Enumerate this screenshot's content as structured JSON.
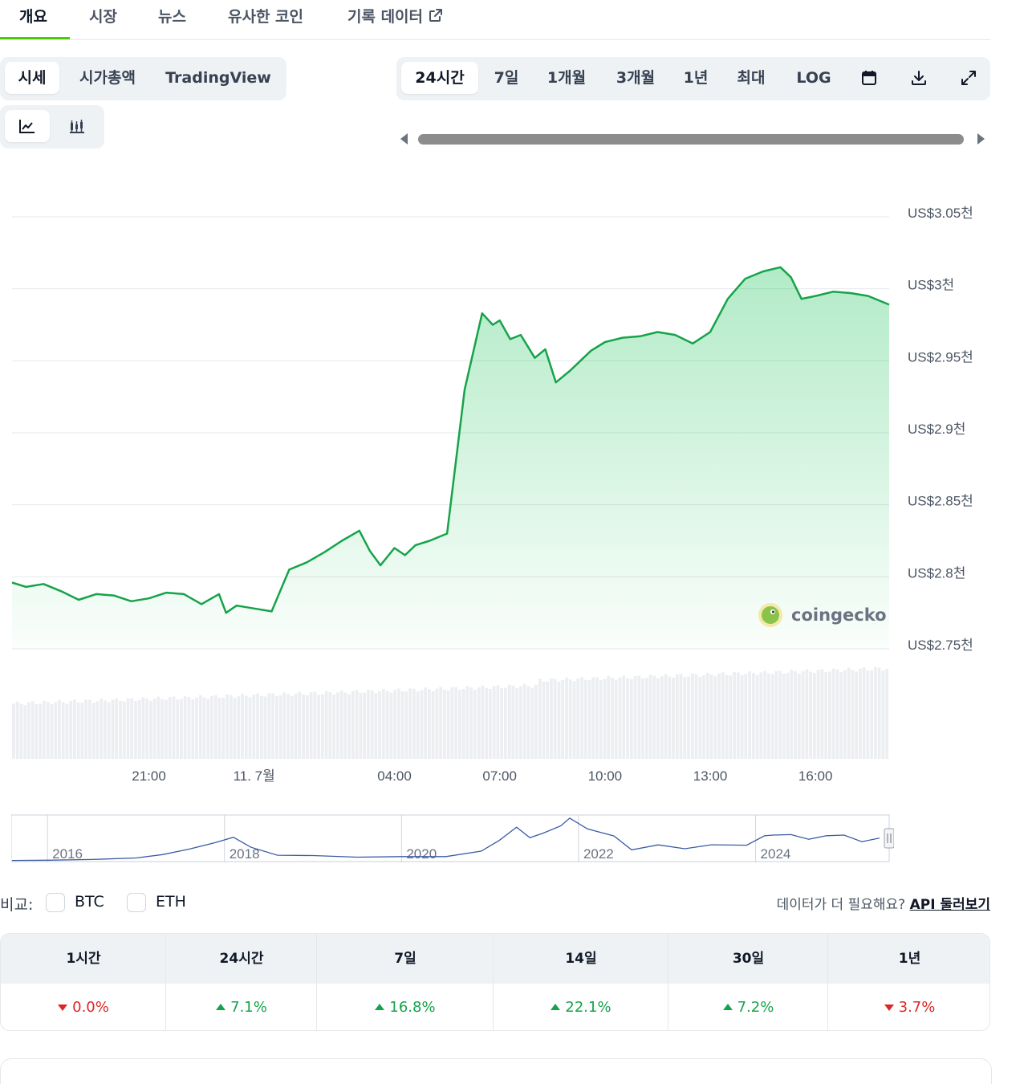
{
  "top_tabs": [
    {
      "label": "개요",
      "active": true
    },
    {
      "label": "시장"
    },
    {
      "label": "뉴스"
    },
    {
      "label": "유사한 코인"
    },
    {
      "label": "기록 데이터"
    }
  ],
  "chart_type_tabs": [
    {
      "label": "시세",
      "active": true
    },
    {
      "label": "시가총액"
    },
    {
      "label": "TradingView"
    }
  ],
  "range_tabs": [
    {
      "label": "24시간",
      "active": true
    },
    {
      "label": "7일"
    },
    {
      "label": "1개월"
    },
    {
      "label": "3개월"
    },
    {
      "label": "1년"
    },
    {
      "label": "최대"
    },
    {
      "label": "LOG"
    }
  ],
  "toolbar_icons": [
    "calendar-icon",
    "download-icon",
    "expand-icon"
  ],
  "view_icons": [
    "line-chart-icon",
    "candlestick-icon"
  ],
  "watermark": "coingecko",
  "colors": {
    "line": "#16a34a",
    "accent": "#4bcc00",
    "up": "#16a34a",
    "down": "#dc2626",
    "navigator": "#3b5ba5"
  },
  "chart_data": {
    "type": "area",
    "y_ticks": [
      "US$3.05천",
      "US$3천",
      "US$2.95천",
      "US$2.9천",
      "US$2.85천",
      "US$2.8천",
      "US$2.75천"
    ],
    "y_tick_values": [
      3050,
      3000,
      2950,
      2900,
      2850,
      2800,
      2750
    ],
    "ylim": [
      2750,
      3050
    ],
    "x_ticks": [
      "21:00",
      "11. 7월",
      "04:00",
      "07:00",
      "10:00",
      "13:00",
      "16:00"
    ],
    "x_tick_positions": [
      3,
      6,
      10,
      13,
      16,
      19,
      22
    ],
    "xlim": [
      -0.9,
      24.1
    ],
    "grid": true,
    "series": [
      {
        "x": [
          -0.9,
          -0.5,
          0,
          0.5,
          1,
          1.5,
          2,
          2.5,
          3,
          3.5,
          4,
          4.5,
          5,
          5.2,
          5.5,
          6,
          6.5,
          7,
          7.5,
          8,
          8.5,
          9,
          9.3,
          9.6,
          10,
          10.3,
          10.6,
          11,
          11.5,
          12,
          12.5,
          12.8,
          13,
          13.3,
          13.6,
          14,
          14.3,
          14.6,
          15,
          15.3,
          15.6,
          16,
          16.5,
          17,
          17.5,
          18,
          18.5,
          19,
          19.5,
          20,
          20.5,
          21,
          21.3,
          21.6,
          22,
          22.5,
          23,
          23.5,
          24.1
        ],
        "values": [
          2796,
          2793,
          2795,
          2790,
          2784,
          2788,
          2787,
          2783,
          2785,
          2789,
          2788,
          2781,
          2788,
          2775,
          2780,
          2778,
          2776,
          2805,
          2810,
          2817,
          2825,
          2832,
          2818,
          2808,
          2820,
          2815,
          2822,
          2825,
          2830,
          2930,
          2983,
          2975,
          2978,
          2965,
          2968,
          2952,
          2958,
          2935,
          2943,
          2950,
          2957,
          2963,
          2966,
          2967,
          2970,
          2968,
          2962,
          2970,
          2993,
          3007,
          3012,
          3015,
          3008,
          2993,
          2995,
          2998,
          2997,
          2995,
          2989
        ]
      }
    ],
    "volume": {
      "min_ratio": 0.55,
      "max_ratio": 0.85
    },
    "navigator": {
      "x_labels": [
        "2016",
        "2018",
        "2020",
        "2022",
        "2024"
      ],
      "x_label_values": [
        2016,
        2018,
        2020,
        2022,
        2024
      ],
      "xlim": [
        2015.6,
        2025.5
      ],
      "x": [
        2015.6,
        2016,
        2016.5,
        2017,
        2017.3,
        2017.6,
        2017.9,
        2018.1,
        2018.3,
        2018.6,
        2019,
        2019.5,
        2020,
        2020.5,
        2020.9,
        2021.1,
        2021.3,
        2021.45,
        2021.6,
        2021.8,
        2021.9,
        2022.1,
        2022.4,
        2022.6,
        2022.9,
        2023.2,
        2023.5,
        2023.9,
        2024.1,
        2024.2,
        2024.4,
        2024.6,
        2024.8,
        2025,
        2025.2,
        2025.4
      ],
      "values": [
        0.5,
        1,
        2,
        5,
        10,
        20,
        30,
        40,
        22,
        10,
        8,
        7,
        6,
        8,
        15,
        35,
        55,
        40,
        45,
        60,
        70,
        55,
        40,
        20,
        25,
        22,
        25,
        28,
        40,
        45,
        42,
        38,
        40,
        45,
        30,
        38
      ]
    }
  },
  "compare": {
    "label": "비교:",
    "options": [
      "BTC",
      "ETH"
    ],
    "api_prompt": "데이터가 더 필요해요?",
    "api_link": "API 둘러보기"
  },
  "change_table": {
    "headers": [
      "1시간",
      "24시간",
      "7일",
      "14일",
      "30일",
      "1년"
    ],
    "values": [
      {
        "value": "0.0%",
        "dir": "down"
      },
      {
        "value": "7.1%",
        "dir": "up"
      },
      {
        "value": "16.8%",
        "dir": "up"
      },
      {
        "value": "22.1%",
        "dir": "up"
      },
      {
        "value": "7.2%",
        "dir": "up"
      },
      {
        "value": "3.7%",
        "dir": "down"
      }
    ]
  }
}
